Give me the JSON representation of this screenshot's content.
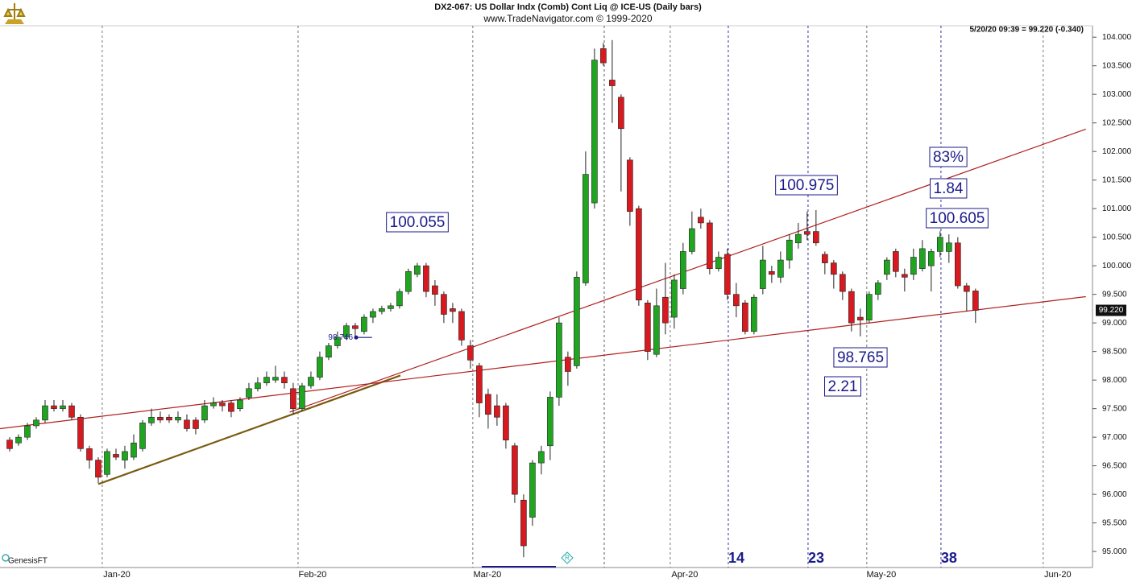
{
  "chart_data": {
    "type": "candlestick",
    "title": "DX2-067:  US Dollar Indx (Comb) Cont Liq @ ICE-US  (Daily bars)",
    "subtitle": "www.TradeNavigator.com © 1999-2020",
    "status": "5/20/20 09:39 = 99.220 (-0.340)",
    "source": "GenesisFT",
    "open": [
      96.95,
      96.9,
      97.0,
      97.2,
      97.3,
      97.55,
      97.5,
      97.55,
      97.35,
      96.8,
      96.6,
      96.35,
      96.7,
      96.6,
      96.65,
      96.8,
      97.25,
      97.35,
      97.35,
      97.3,
      97.3,
      97.3,
      97.3,
      97.55,
      97.6,
      97.6,
      97.5,
      97.7,
      97.85,
      97.95,
      98.0,
      98.05,
      97.85,
      97.5,
      97.9,
      98.05,
      98.4,
      98.6,
      98.75,
      98.95,
      98.85,
      99.1,
      99.2,
      99.25,
      99.3,
      99.55,
      99.85,
      100.0,
      99.65,
      99.5,
      99.25,
      99.2,
      98.6,
      98.25,
      97.75,
      97.55,
      97.55,
      96.85,
      95.9,
      95.6,
      96.55,
      96.85,
      97.7,
      98.4,
      98.25,
      99.7,
      101.1,
      103.8,
      103.25,
      102.95,
      101.85,
      101.0,
      99.35,
      98.45,
      99.45,
      99.1,
      99.6,
      100.25,
      100.85,
      100.75,
      99.95,
      100.2,
      99.5,
      99.35,
      98.85,
      99.6,
      99.9,
      99.8,
      100.1,
      100.4,
      100.6,
      100.6,
      100.2,
      100.05,
      99.85,
      99.55,
      99.1,
      99.05,
      99.5,
      99.85,
      100.25,
      99.85,
      99.85,
      99.95,
      100.0,
      100.25,
      100.25,
      100.4,
      99.65,
      99.56
    ],
    "high": [
      97.0,
      97.05,
      97.25,
      97.35,
      97.65,
      97.65,
      97.65,
      97.6,
      97.4,
      96.85,
      96.65,
      96.8,
      96.8,
      96.85,
      97.05,
      97.3,
      97.5,
      97.45,
      97.4,
      97.45,
      97.4,
      97.35,
      97.65,
      97.7,
      97.65,
      97.65,
      97.7,
      97.95,
      98.05,
      98.15,
      98.25,
      98.15,
      97.95,
      97.95,
      98.15,
      98.5,
      98.65,
      98.85,
      99.0,
      99.0,
      99.15,
      99.25,
      99.3,
      99.35,
      99.6,
      99.95,
      100.05,
      100.05,
      99.75,
      99.55,
      99.35,
      99.25,
      98.7,
      98.3,
      97.85,
      97.75,
      97.6,
      96.9,
      96.0,
      96.6,
      96.85,
      97.8,
      99.1,
      98.5,
      99.9,
      102.0,
      103.8,
      103.9,
      103.95,
      103.0,
      101.9,
      101.05,
      99.4,
      99.6,
      100.05,
      99.85,
      100.4,
      100.95,
      101.0,
      100.8,
      100.25,
      100.3,
      99.7,
      99.4,
      99.5,
      100.35,
      100.0,
      100.25,
      100.55,
      100.75,
      100.95,
      100.975,
      100.25,
      100.1,
      99.9,
      99.6,
      99.25,
      99.55,
      99.75,
      100.15,
      100.3,
      99.95,
      100.3,
      100.45,
      100.3,
      100.605,
      100.55,
      100.5,
      99.7,
      99.6
    ],
    "low": [
      96.75,
      96.85,
      96.95,
      97.15,
      97.25,
      97.45,
      97.45,
      97.3,
      96.75,
      96.45,
      96.2,
      96.3,
      96.6,
      96.45,
      96.6,
      96.75,
      97.2,
      97.25,
      97.25,
      97.25,
      97.1,
      97.05,
      97.25,
      97.5,
      97.45,
      97.35,
      97.45,
      97.65,
      97.8,
      97.9,
      97.95,
      97.85,
      97.4,
      97.45,
      97.85,
      98.0,
      98.35,
      98.55,
      98.7,
      98.75,
      98.8,
      99.0,
      99.15,
      99.2,
      99.25,
      99.5,
      99.8,
      99.45,
      99.3,
      99.0,
      99.0,
      98.6,
      98.2,
      97.35,
      97.15,
      97.2,
      96.8,
      95.85,
      94.9,
      95.45,
      96.35,
      96.6,
      97.55,
      97.9,
      98.2,
      99.65,
      101.0,
      103.5,
      102.5,
      101.3,
      100.7,
      99.3,
      98.35,
      98.4,
      98.8,
      98.9,
      99.5,
      100.2,
      100.65,
      99.85,
      99.9,
      99.4,
      99.1,
      98.8,
      98.8,
      99.5,
      99.7,
      99.7,
      99.95,
      100.3,
      100.45,
      100.35,
      99.85,
      99.6,
      99.4,
      98.85,
      98.765,
      99.0,
      99.4,
      99.75,
      99.8,
      99.55,
      99.75,
      99.9,
      99.55,
      100.15,
      100.05,
      99.6,
      99.2,
      99.0
    ],
    "close": [
      96.8,
      97.0,
      97.2,
      97.3,
      97.55,
      97.5,
      97.55,
      97.35,
      96.8,
      96.6,
      96.3,
      96.75,
      96.65,
      96.75,
      96.9,
      97.25,
      97.35,
      97.3,
      97.3,
      97.35,
      97.15,
      97.15,
      97.55,
      97.6,
      97.55,
      97.45,
      97.65,
      97.85,
      97.95,
      98.05,
      98.05,
      97.95,
      97.5,
      97.9,
      98.05,
      98.4,
      98.6,
      98.75,
      98.95,
      98.9,
      99.1,
      99.2,
      99.25,
      99.3,
      99.55,
      99.9,
      100.0,
      99.55,
      99.5,
      99.15,
      99.2,
      98.7,
      98.35,
      97.6,
      97.4,
      97.35,
      96.95,
      96.0,
      95.1,
      96.55,
      96.75,
      97.7,
      99.0,
      98.15,
      99.8,
      101.6,
      103.6,
      103.55,
      103.15,
      102.4,
      100.95,
      99.4,
      98.5,
      99.3,
      99.0,
      99.75,
      100.25,
      100.65,
      100.75,
      99.95,
      100.15,
      99.5,
      99.3,
      98.85,
      99.45,
      100.1,
      99.85,
      100.1,
      100.45,
      100.55,
      100.55,
      100.4,
      100.05,
      99.85,
      99.55,
      99.0,
      99.05,
      99.5,
      99.7,
      100.1,
      99.9,
      99.8,
      100.15,
      100.3,
      100.25,
      100.5,
      100.4,
      99.65,
      99.55,
      99.22
    ],
    "up_color": "#1fa51f",
    "down_color": "#d71a1f",
    "xlim": [
      -1.09,
      122.2
    ],
    "ylim": [
      94.72,
      104.2
    ],
    "xticks": [
      {
        "value": 10.45,
        "label": "Jan-20"
      },
      {
        "value": 32.55,
        "label": "Feb-20"
      },
      {
        "value": 52.27,
        "label": "Mar-20"
      },
      {
        "value": 74.55,
        "label": "Apr-20"
      },
      {
        "value": 96.73,
        "label": "May-20"
      },
      {
        "value": 116.64,
        "label": "Jun-20"
      }
    ],
    "yticks": [
      {
        "value": 95,
        "label": "95.000"
      },
      {
        "value": 95.5,
        "label": "95.500"
      },
      {
        "value": 96,
        "label": "96.000"
      },
      {
        "value": 96.5,
        "label": "96.500"
      },
      {
        "value": 97,
        "label": "97.000"
      },
      {
        "value": 97.5,
        "label": "97.500"
      },
      {
        "value": 98,
        "label": "98.000"
      },
      {
        "value": 98.5,
        "label": "98.500"
      },
      {
        "value": 99,
        "label": "99.000"
      },
      {
        "value": 99.5,
        "label": "99.500"
      },
      {
        "value": 100,
        "label": "100.000"
      },
      {
        "value": 100.5,
        "label": "100.500"
      },
      {
        "value": 101,
        "label": "101.000"
      },
      {
        "value": 101.5,
        "label": "101.500"
      },
      {
        "value": 102,
        "label": "102.000"
      },
      {
        "value": 102.5,
        "label": "102.500"
      },
      {
        "value": 103,
        "label": "103.000"
      },
      {
        "value": 103.5,
        "label": "103.500"
      },
      {
        "value": 104,
        "label": "104.000"
      }
    ],
    "last_price": {
      "value": 99.22,
      "label": "99.220"
    },
    "count_lines": {
      "x": [
        81.1,
        90.1,
        105.1
      ],
      "labels": [
        14,
        23,
        38
      ],
      "color": "#1a1a8c"
    },
    "event_lines": [
      67.1
    ],
    "trend_lines": [
      {
        "x": [
          10,
          44.1
        ],
        "y": [
          96.18,
          98.08
        ],
        "color": "#7a5a10"
      },
      {
        "x": [
          -1.09,
          121.45
        ],
        "y": [
          97.15,
          99.46
        ],
        "color": "#b02020"
      },
      {
        "x": [
          31.6,
          121.45
        ],
        "y": [
          97.44,
          102.39
        ],
        "color": "#b02020"
      }
    ],
    "price_marker": {
      "value": 98.746,
      "x": [
        39.1,
        40.9
      ]
    },
    "annotations": [
      "100.055",
      "100.975",
      "83%",
      "1.84",
      "100.605",
      "98.765",
      "2.21"
    ]
  }
}
